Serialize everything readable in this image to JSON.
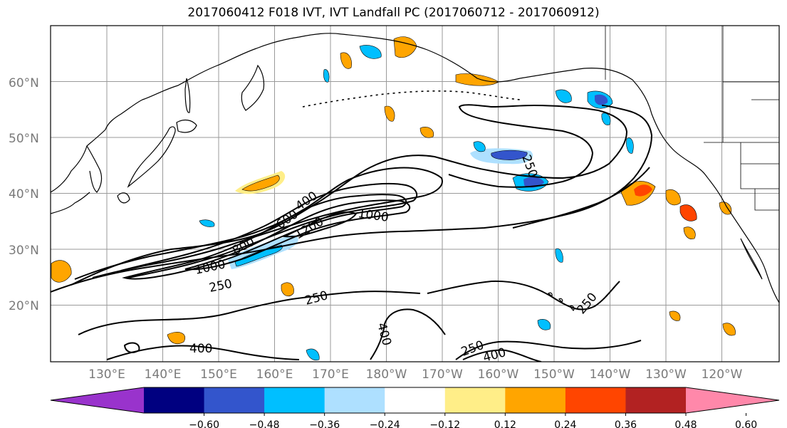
{
  "title": "2017060412 F018 IVT, IVT Landfall PC (2017060712 - 2017060912)",
  "map": {
    "lat_labels": [
      "60°N",
      "50°N",
      "40°N",
      "30°N",
      "20°N"
    ],
    "lon_labels": [
      "130°E",
      "140°E",
      "150°E",
      "160°E",
      "170°E",
      "180°W",
      "170°W",
      "160°W",
      "150°W",
      "140°W",
      "130°W",
      "120°W"
    ],
    "contour_labels": [
      "250",
      "400",
      "600",
      "800",
      "1000",
      "1000",
      "1200",
      "250",
      "250",
      "250",
      "400",
      "400",
      "250",
      "400",
      "1000"
    ]
  },
  "colorbar": {
    "ticks": [
      "−0.60",
      "−0.48",
      "−0.36",
      "−0.24",
      "−0.12",
      "0.12",
      "0.24",
      "0.36",
      "0.48",
      "0.60"
    ],
    "colors": [
      "#9933cc",
      "#000080",
      "#3355cc",
      "#00bfff",
      "#aee0ff",
      "#ffffff",
      "#ffee88",
      "#ffa500",
      "#ff4500",
      "#b22222",
      "#ff88aa"
    ]
  },
  "colors": {
    "grid": "#9a9a9a",
    "coast": "#000000",
    "contour": "#000000",
    "neg_light": "#aee0ff",
    "neg_mid": "#00bfff",
    "neg_dark": "#3355cc",
    "pos_light": "#ffee88",
    "pos_mid": "#ffa500",
    "pos_dark": "#ff4500",
    "pos_darker": "#b22222"
  }
}
